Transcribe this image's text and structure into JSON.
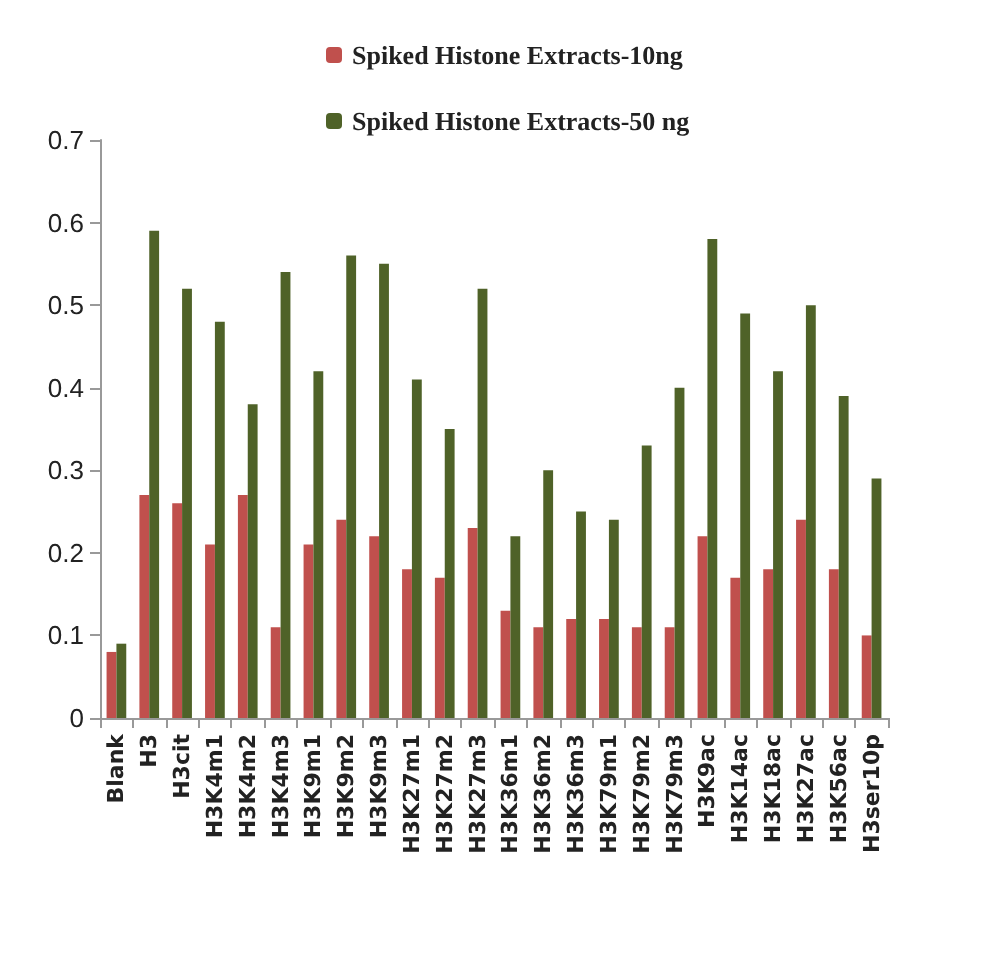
{
  "chart_data": {
    "type": "bar",
    "categories": [
      "Blank",
      "H3",
      "H3cit",
      "H3K4m1",
      "H3K4m2",
      "H3K4m3",
      "H3K9m1",
      "H3K9m2",
      "H3K9m3",
      "H3K27m1",
      "H3K27m2",
      "H3K27m3",
      "H3K36m1",
      "H3K36m2",
      "H3K36m3",
      "H3K79m1",
      "H3K79m2",
      "H3K79m3",
      "H3K9ac",
      "H3K14ac",
      "H3K18ac",
      "H3K27ac",
      "H3K56ac",
      "H3ser10p"
    ],
    "series": [
      {
        "name": "Spiked Histone Extracts-10ng",
        "color": "#c0504d",
        "values": [
          0.08,
          0.27,
          0.26,
          0.21,
          0.27,
          0.11,
          0.21,
          0.24,
          0.22,
          0.18,
          0.17,
          0.23,
          0.13,
          0.11,
          0.12,
          0.12,
          0.11,
          0.11,
          0.22,
          0.17,
          0.18,
          0.24,
          0.18,
          0.1
        ]
      },
      {
        "name": "Spiked Histone Extracts-50 ng",
        "color": "#4f6228",
        "values": [
          0.09,
          0.59,
          0.52,
          0.48,
          0.38,
          0.54,
          0.42,
          0.56,
          0.55,
          0.41,
          0.35,
          0.52,
          0.22,
          0.3,
          0.25,
          0.24,
          0.33,
          0.4,
          0.58,
          0.49,
          0.42,
          0.5,
          0.39,
          0.29
        ]
      }
    ],
    "ylim": [
      0,
      0.7
    ],
    "yticks": [
      0,
      0.1,
      0.2,
      0.3,
      0.4,
      0.5,
      0.6,
      0.7
    ],
    "grid": false,
    "legend": "top"
  }
}
